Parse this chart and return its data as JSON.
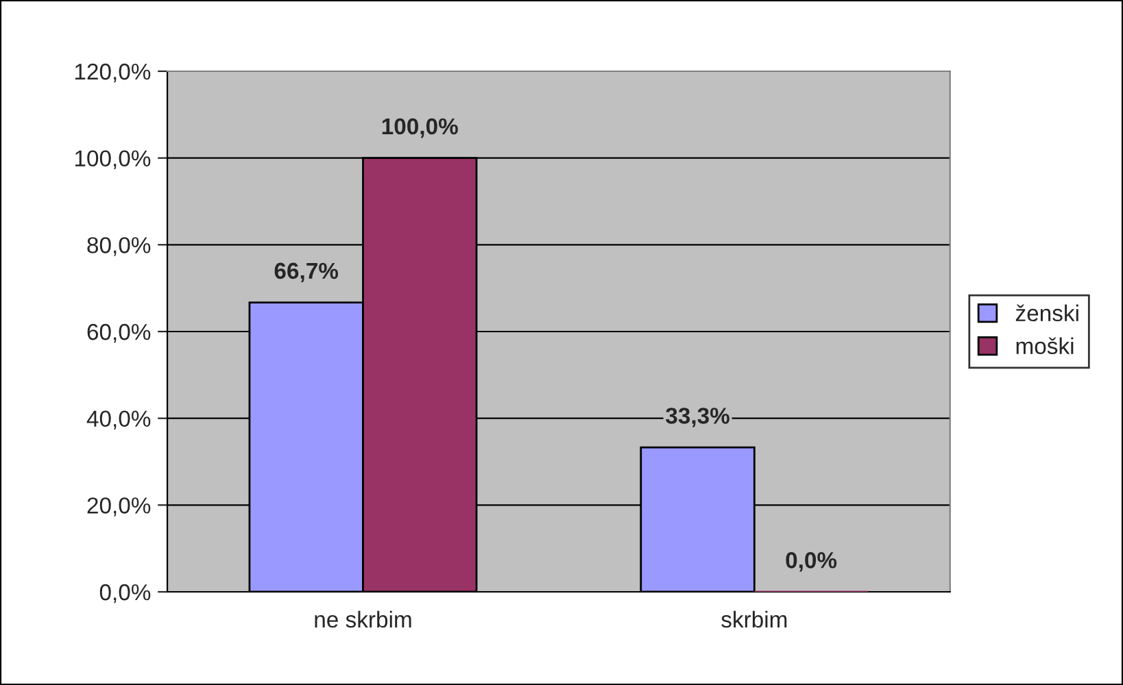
{
  "chart_data": {
    "type": "bar",
    "categories": [
      "ne skrbim",
      "skrbim"
    ],
    "series": [
      {
        "name": "ženski",
        "color": "#9999ff",
        "values": [
          66.7,
          33.3
        ],
        "value_labels": [
          "66,7%",
          "33,3%"
        ]
      },
      {
        "name": "moški",
        "color": "#993366",
        "values": [
          100.0,
          0.0
        ],
        "value_labels": [
          "100,0%",
          "0,0%"
        ]
      }
    ],
    "ylim": [
      0,
      120
    ],
    "yticks": [
      {
        "value": 0,
        "label": "0,0%"
      },
      {
        "value": 20,
        "label": "20,0%"
      },
      {
        "value": 40,
        "label": "40,0%"
      },
      {
        "value": 60,
        "label": "60,0%"
      },
      {
        "value": 80,
        "label": "80,0%"
      },
      {
        "value": 100,
        "label": "100,0%"
      },
      {
        "value": 120,
        "label": "120,0%"
      }
    ],
    "grid": "y",
    "legend": "right"
  }
}
